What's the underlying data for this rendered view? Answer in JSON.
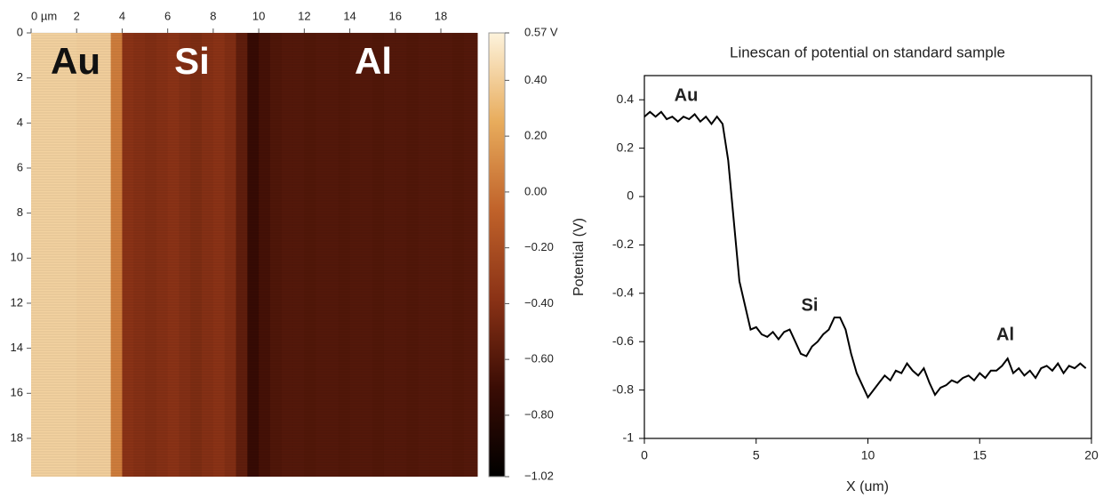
{
  "chart_data": [
    {
      "type": "heatmap",
      "x": [
        0,
        0.5,
        1,
        1.5,
        2,
        2.5,
        3,
        3.5,
        4,
        4.5,
        5,
        5.5,
        6,
        6.5,
        7,
        7.5,
        8,
        8.5,
        9,
        9.5,
        10,
        10.5,
        11,
        11.5,
        12,
        12.5,
        13,
        13.5,
        14,
        14.5,
        15,
        15.5,
        16,
        16.5,
        17,
        17.5,
        18,
        18.5,
        19,
        19.5
      ],
      "values": [
        0.42,
        0.42,
        0.42,
        0.42,
        0.41,
        0.41,
        0.41,
        0.05,
        -0.38,
        -0.4,
        -0.42,
        -0.4,
        -0.38,
        -0.41,
        -0.43,
        -0.4,
        -0.38,
        -0.42,
        -0.55,
        -0.72,
        -0.66,
        -0.62,
        -0.6,
        -0.6,
        -0.61,
        -0.6,
        -0.6,
        -0.61,
        -0.6,
        -0.6,
        -0.61,
        -0.6,
        -0.6,
        -0.61,
        -0.6,
        -0.6,
        -0.6,
        -0.61,
        -0.6,
        -0.6
      ],
      "xlim": [
        0,
        19.6
      ],
      "ylim": [
        0,
        19.7
      ],
      "xticks": [
        {
          "value": 0,
          "label": "0 µm"
        },
        2,
        4,
        6,
        8,
        10,
        12,
        14,
        16,
        18
      ],
      "yticks": [
        0,
        2,
        4,
        6,
        8,
        10,
        12,
        14,
        16,
        18
      ],
      "clim": [
        -1.02,
        0.57
      ],
      "colormap": [
        "#000000",
        "#3a0c04",
        "#8a3216",
        "#c0622a",
        "#e8ac5c",
        "#fdf3dc"
      ],
      "cticks": [
        {
          "value": 0.57,
          "label": "0.57 V"
        },
        {
          "value": 0.4,
          "label": "0.40"
        },
        {
          "value": 0.2,
          "label": "0.20"
        },
        {
          "value": 0,
          "label": "0.00"
        },
        {
          "value": -0.2,
          "label": "−0.20"
        },
        {
          "value": -0.4,
          "label": "−0.40"
        },
        {
          "value": -0.6,
          "label": "−0.60"
        },
        {
          "value": -0.8,
          "label": "−0.80"
        },
        {
          "value": -1.02,
          "label": "−1.02"
        }
      ],
      "annotations": [
        "Au",
        "Si",
        "Al"
      ]
    },
    {
      "type": "line",
      "title": "Linescan of potential on standard sample",
      "xlabel": "X (um)",
      "ylabel": "Potential (V)",
      "x": [
        0,
        0.25,
        0.5,
        0.75,
        1,
        1.25,
        1.5,
        1.75,
        2,
        2.25,
        2.5,
        2.75,
        3,
        3.25,
        3.5,
        3.75,
        4,
        4.25,
        4.5,
        4.75,
        5,
        5.25,
        5.5,
        5.75,
        6,
        6.25,
        6.5,
        6.75,
        7,
        7.25,
        7.5,
        7.75,
        8,
        8.25,
        8.5,
        8.75,
        9,
        9.25,
        9.5,
        9.75,
        10,
        10.25,
        10.5,
        10.75,
        11,
        11.25,
        11.5,
        11.75,
        12,
        12.25,
        12.5,
        12.75,
        13,
        13.25,
        13.5,
        13.75,
        14,
        14.25,
        14.5,
        14.75,
        15,
        15.25,
        15.5,
        15.75,
        16,
        16.25,
        16.5,
        16.75,
        17,
        17.25,
        17.5,
        17.75,
        18,
        18.25,
        18.5,
        18.75,
        19,
        19.25,
        19.5,
        19.75
      ],
      "series": [
        {
          "color": "#000000",
          "values": [
            0.33,
            0.35,
            0.33,
            0.35,
            0.32,
            0.33,
            0.31,
            0.33,
            0.32,
            0.34,
            0.31,
            0.33,
            0.3,
            0.33,
            0.3,
            0.15,
            -0.1,
            -0.35,
            -0.45,
            -0.55,
            -0.54,
            -0.57,
            -0.58,
            -0.56,
            -0.59,
            -0.56,
            -0.55,
            -0.6,
            -0.65,
            -0.66,
            -0.62,
            -0.6,
            -0.57,
            -0.55,
            -0.5,
            -0.5,
            -0.55,
            -0.65,
            -0.73,
            -0.78,
            -0.83,
            -0.8,
            -0.77,
            -0.74,
            -0.76,
            -0.72,
            -0.73,
            -0.69,
            -0.72,
            -0.74,
            -0.71,
            -0.77,
            -0.82,
            -0.79,
            -0.78,
            -0.76,
            -0.77,
            -0.75,
            -0.74,
            -0.76,
            -0.73,
            -0.75,
            -0.72,
            -0.72,
            -0.7,
            -0.67,
            -0.73,
            -0.71,
            -0.74,
            -0.72,
            -0.75,
            -0.71,
            -0.7,
            -0.72,
            -0.69,
            -0.73,
            -0.7,
            -0.71,
            -0.69,
            -0.71
          ]
        }
      ],
      "xlim": [
        0,
        20
      ],
      "ylim": [
        -1,
        0.5
      ],
      "xticks": [
        0,
        5,
        10,
        15,
        20
      ],
      "yticks": [
        -1,
        -0.8,
        -0.6,
        -0.4,
        -0.2,
        0,
        0.2,
        0.4
      ],
      "annotations": [
        "Au",
        "Si",
        "Al"
      ]
    }
  ]
}
